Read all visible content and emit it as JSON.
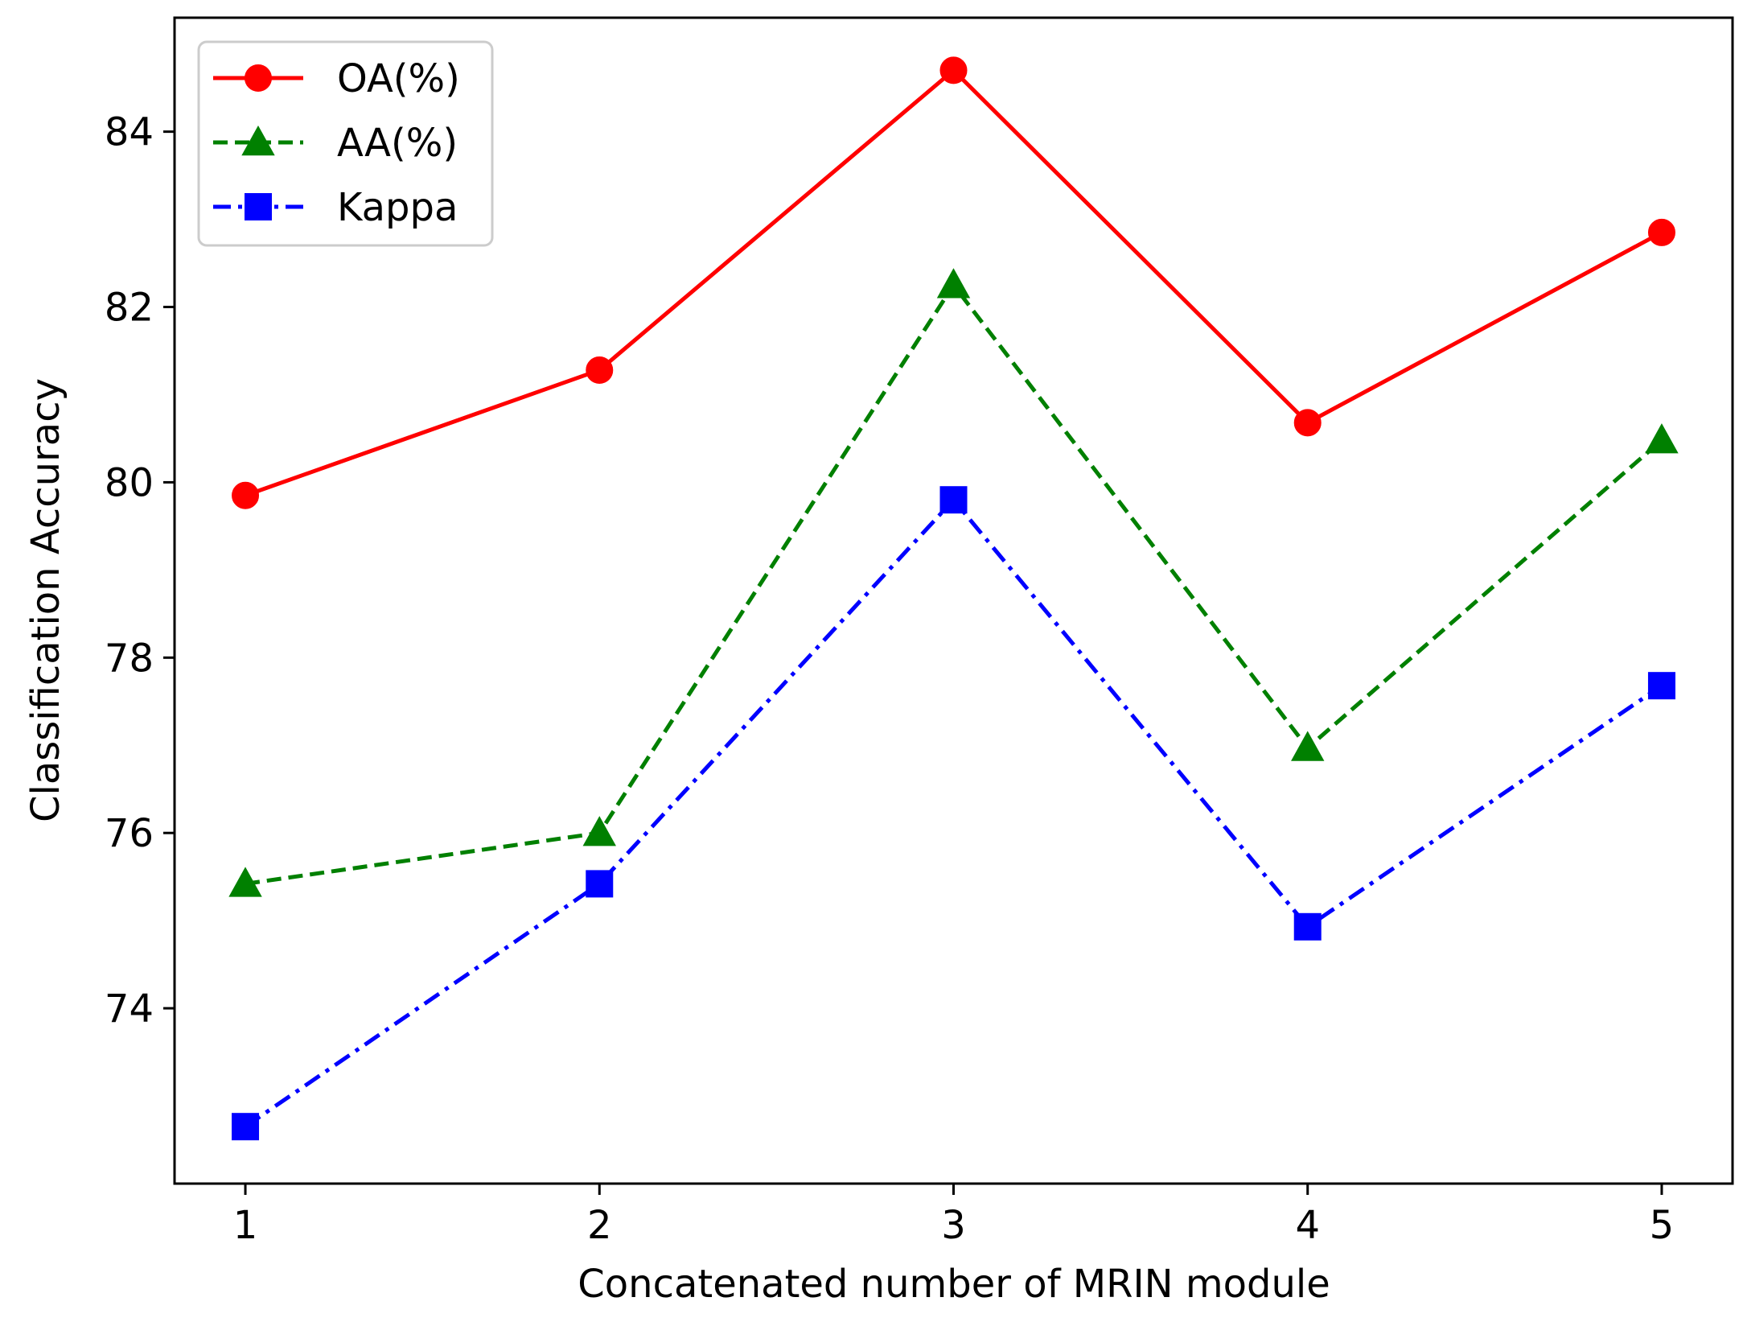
{
  "chart_data": {
    "type": "line",
    "title": "",
    "xlabel": "Concatenated number of MRIN module",
    "ylabel": "Classification Accuracy",
    "x": [
      1,
      2,
      3,
      4,
      5
    ],
    "x_ticks": [
      "1",
      "2",
      "3",
      "4",
      "5"
    ],
    "y_ticks": [
      "74",
      "76",
      "78",
      "80",
      "82",
      "84"
    ],
    "xlim": [
      0.8,
      5.2
    ],
    "ylim": [
      72.0,
      85.3
    ],
    "grid": false,
    "legend_position": "top-left",
    "series": [
      {
        "name": "OA(%)",
        "values": [
          79.85,
          81.28,
          84.7,
          80.68,
          82.85
        ],
        "color": "#ff0000",
        "marker": "circle",
        "linestyle": "solid"
      },
      {
        "name": "AA(%)",
        "values": [
          75.42,
          76.0,
          82.25,
          76.97,
          80.48
        ],
        "color": "#008000",
        "marker": "triangle",
        "linestyle": "dashed"
      },
      {
        "name": "Kappa",
        "values": [
          72.65,
          75.42,
          79.8,
          74.93,
          77.68
        ],
        "color": "#0000ff",
        "marker": "square",
        "linestyle": "dashdot"
      }
    ]
  }
}
